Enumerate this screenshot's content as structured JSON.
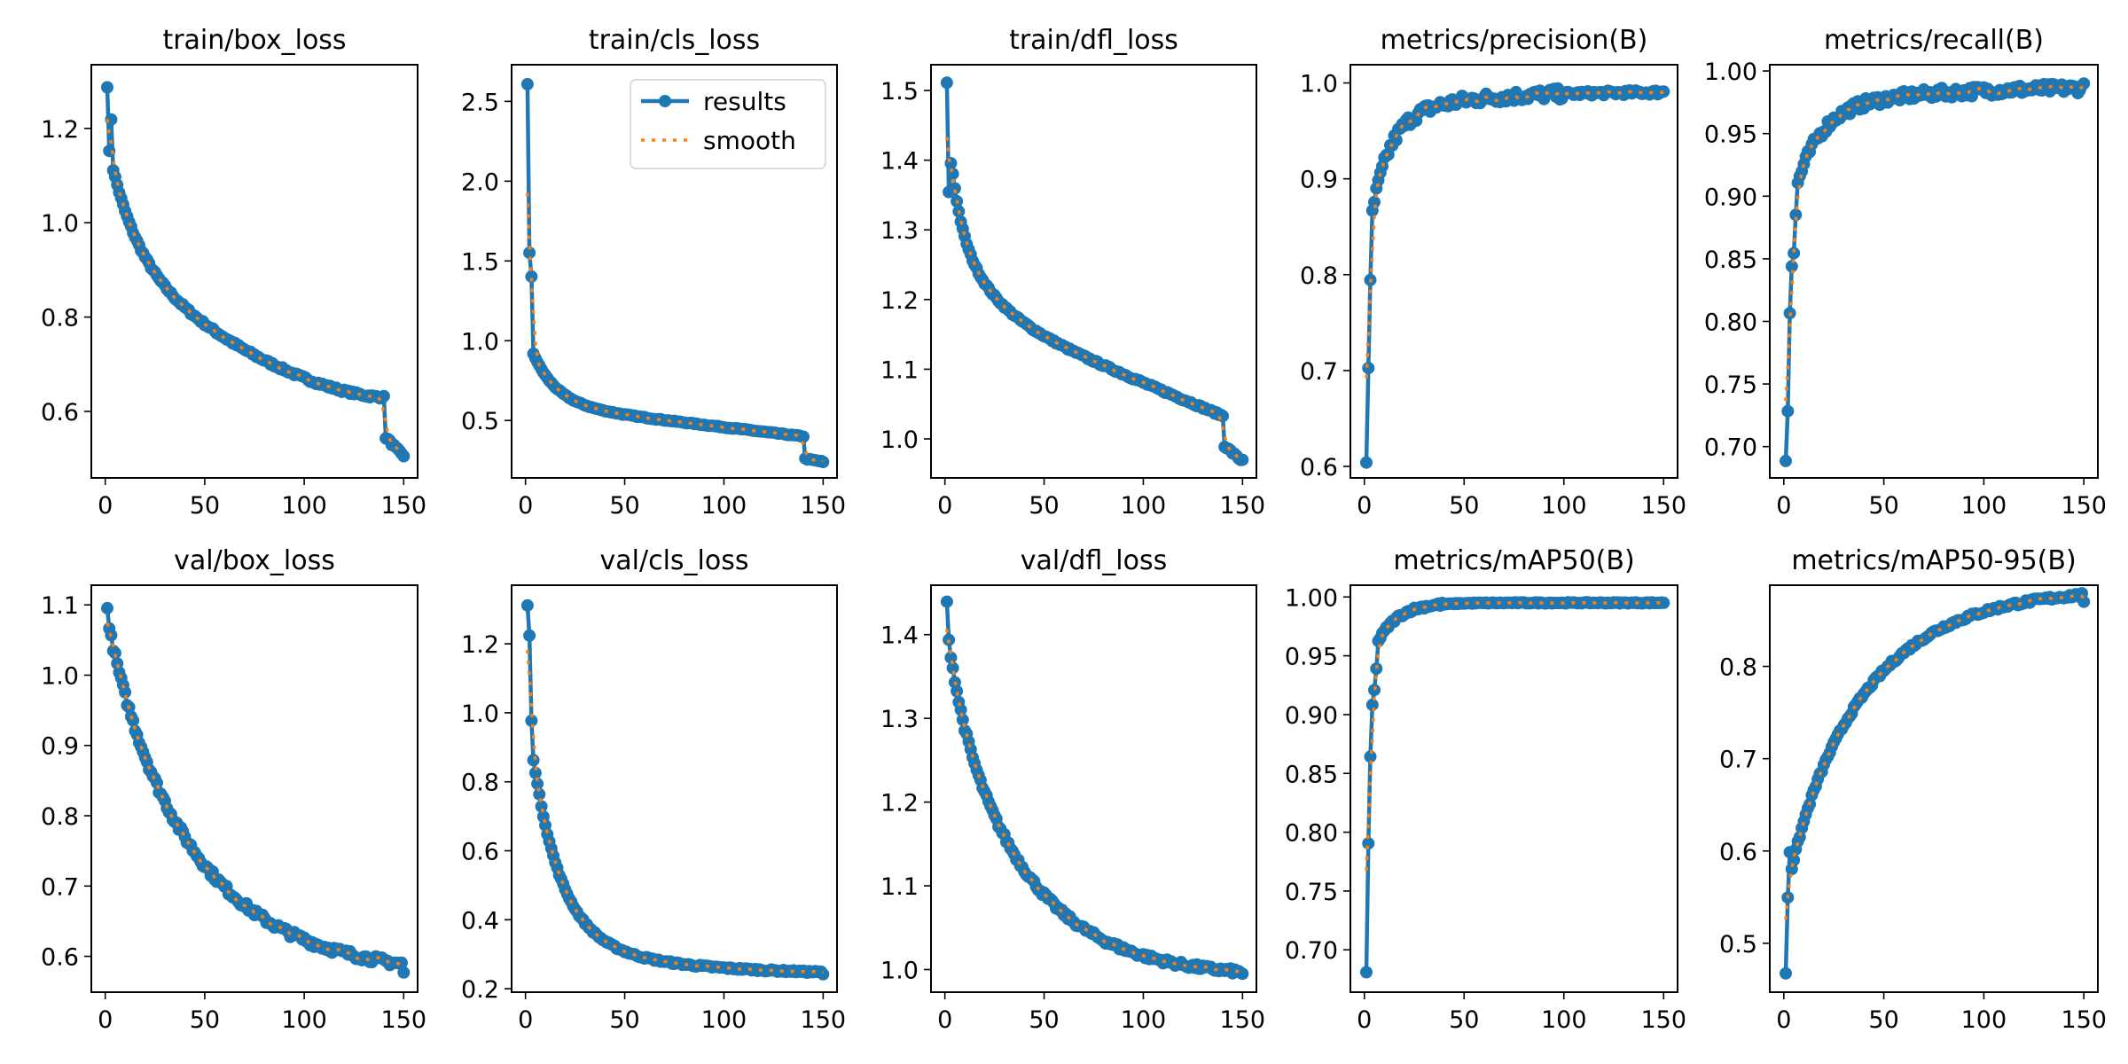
{
  "chart_data": [
    {
      "type": "line",
      "title": "train/box_loss",
      "xlim": [
        -7,
        157
      ],
      "ylim": [
        0.459,
        1.335
      ],
      "xticks": [
        0,
        50,
        100,
        150
      ],
      "yticks": [
        0.6,
        0.8,
        1.0,
        1.2
      ],
      "ytick_labels": [
        "0.6",
        "0.8",
        "1.0",
        "1.2"
      ],
      "kind": "trainbox",
      "legend": false
    },
    {
      "type": "line",
      "title": "train/cls_loss",
      "xlim": [
        -7,
        157
      ],
      "ylim": [
        0.14,
        2.73
      ],
      "xticks": [
        0,
        50,
        100,
        150
      ],
      "yticks": [
        0.5,
        1.0,
        1.5,
        2.0,
        2.5
      ],
      "ytick_labels": [
        "0.5",
        "1.0",
        "1.5",
        "2.0",
        "2.5"
      ],
      "kind": "traincls",
      "legend": true
    },
    {
      "type": "line",
      "title": "train/dfl_loss",
      "xlim": [
        -7,
        157
      ],
      "ylim": [
        0.944,
        1.537
      ],
      "xticks": [
        0,
        50,
        100,
        150
      ],
      "yticks": [
        1.0,
        1.1,
        1.2,
        1.3,
        1.4,
        1.5
      ],
      "ytick_labels": [
        "1.0",
        "1.1",
        "1.2",
        "1.3",
        "1.4",
        "1.5"
      ],
      "kind": "traindfl",
      "legend": false
    },
    {
      "type": "line",
      "title": "metrics/precision(B)",
      "xlim": [
        -7,
        157
      ],
      "ylim": [
        0.588,
        1.019
      ],
      "xticks": [
        0,
        50,
        100,
        150
      ],
      "yticks": [
        0.6,
        0.7,
        0.8,
        0.9,
        1.0
      ],
      "ytick_labels": [
        "0.6",
        "0.7",
        "0.8",
        "0.9",
        "1.0"
      ],
      "kind": "precision",
      "legend": false
    },
    {
      "type": "line",
      "title": "metrics/recall(B)",
      "xlim": [
        -7,
        157
      ],
      "ylim": [
        0.675,
        1.005
      ],
      "xticks": [
        0,
        50,
        100,
        150
      ],
      "yticks": [
        0.7,
        0.75,
        0.8,
        0.85,
        0.9,
        0.95,
        1.0
      ],
      "ytick_labels": [
        "0.70",
        "0.75",
        "0.80",
        "0.85",
        "0.90",
        "0.95",
        "1.00"
      ],
      "kind": "recall",
      "legend": false
    },
    {
      "type": "line",
      "title": "val/box_loss",
      "xlim": [
        -7,
        157
      ],
      "ylim": [
        0.549,
        1.128
      ],
      "xticks": [
        0,
        50,
        100,
        150
      ],
      "yticks": [
        0.6,
        0.7,
        0.8,
        0.9,
        1.0,
        1.1
      ],
      "ytick_labels": [
        "0.6",
        "0.7",
        "0.8",
        "0.9",
        "1.0",
        "1.1"
      ],
      "kind": "valbox",
      "legend": false
    },
    {
      "type": "line",
      "title": "val/cls_loss",
      "xlim": [
        -7,
        157
      ],
      "ylim": [
        0.19,
        1.37
      ],
      "xticks": [
        0,
        50,
        100,
        150
      ],
      "yticks": [
        0.2,
        0.4,
        0.6,
        0.8,
        1.0,
        1.2
      ],
      "ytick_labels": [
        "0.2",
        "0.4",
        "0.6",
        "0.8",
        "1.0",
        "1.2"
      ],
      "kind": "valcls",
      "legend": false
    },
    {
      "type": "line",
      "title": "val/dfl_loss",
      "xlim": [
        -7,
        157
      ],
      "ylim": [
        0.973,
        1.459
      ],
      "xticks": [
        0,
        50,
        100,
        150
      ],
      "yticks": [
        1.0,
        1.1,
        1.2,
        1.3,
        1.4
      ],
      "ytick_labels": [
        "1.0",
        "1.1",
        "1.2",
        "1.3",
        "1.4"
      ],
      "kind": "valdfl",
      "legend": false
    },
    {
      "type": "line",
      "title": "metrics/mAP50(B)",
      "xlim": [
        -7,
        157
      ],
      "ylim": [
        0.664,
        1.01
      ],
      "xticks": [
        0,
        50,
        100,
        150
      ],
      "yticks": [
        0.7,
        0.75,
        0.8,
        0.85,
        0.9,
        0.95,
        1.0
      ],
      "ytick_labels": [
        "0.70",
        "0.75",
        "0.80",
        "0.85",
        "0.90",
        "0.95",
        "1.00"
      ],
      "kind": "map50",
      "legend": false
    },
    {
      "type": "line",
      "title": "metrics/mAP50-95(B)",
      "xlim": [
        -7,
        157
      ],
      "ylim": [
        0.447,
        0.888
      ],
      "xticks": [
        0,
        50,
        100,
        150
      ],
      "yticks": [
        0.5,
        0.6,
        0.7,
        0.8
      ],
      "ytick_labels": [
        "0.5",
        "0.6",
        "0.7",
        "0.8"
      ],
      "kind": "map5095",
      "legend": false
    }
  ],
  "series_names": {
    "results": "results",
    "smooth": "smooth"
  },
  "colors": {
    "results": "#1f77b4",
    "smooth": "#ff7f0e"
  },
  "epochs": 150,
  "endpoints": {
    "train/box_loss": [
      1.29,
      0.505
    ],
    "train/cls_loss": [
      2.61,
      0.24
    ],
    "train/dfl_loss": [
      1.51,
      0.97
    ],
    "metrics/precision(B)": [
      0.607,
      0.991
    ],
    "metrics/recall(B)": [
      0.69,
      0.99
    ],
    "val/box_loss": [
      1.1,
      0.577
    ],
    "val/cls_loss": [
      1.31,
      0.242
    ],
    "val/dfl_loss": [
      1.437,
      0.995
    ],
    "metrics/mAP50(B)": [
      0.68,
      0.995
    ],
    "metrics/mAP50-95(B)": [
      0.468,
      0.87
    ]
  }
}
